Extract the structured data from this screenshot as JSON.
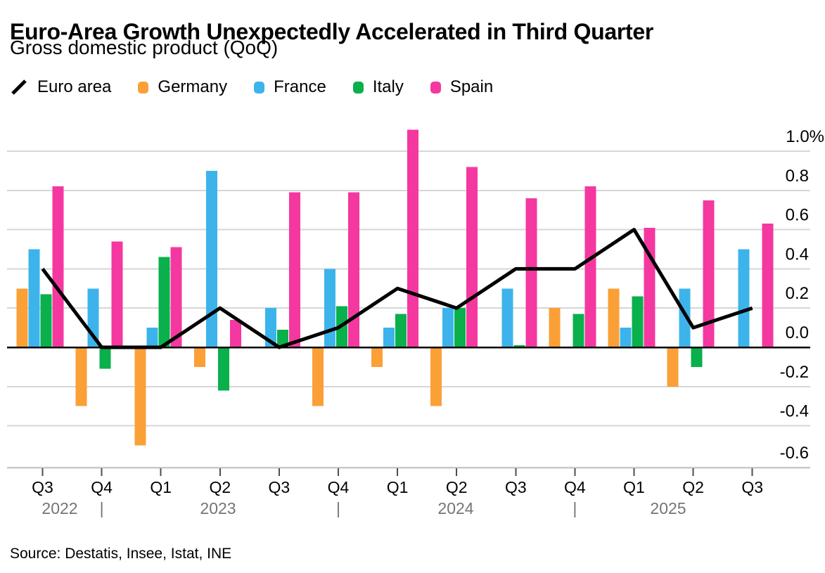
{
  "header": {
    "title": "Euro-Area Growth Unexpectedly Accelerated in Third Quarter",
    "subtitle": "Gross domestic product (QoQ)"
  },
  "legend": [
    {
      "label": "Euro area",
      "type": "line",
      "color": "#000000"
    },
    {
      "label": "Germany",
      "type": "square",
      "color": "#FAA037"
    },
    {
      "label": "France",
      "type": "square",
      "color": "#3CB4EB"
    },
    {
      "label": "Italy",
      "type": "square",
      "color": "#0AB04B"
    },
    {
      "label": "Spain",
      "type": "square",
      "color": "#F438A0"
    }
  ],
  "source": "Source: Destatis, Insee, Istat, INE",
  "chart_data": {
    "type": "bar+line",
    "categories": [
      "Q3",
      "Q4",
      "Q1",
      "Q2",
      "Q3",
      "Q4",
      "Q1",
      "Q2",
      "Q3",
      "Q4",
      "Q1",
      "Q2",
      "Q3"
    ],
    "year_labels": [
      "2022",
      "2023",
      "2024",
      "2025"
    ],
    "year_separator": "|",
    "ylim": [
      -0.6,
      1.0
    ],
    "ytick_values": [
      1.0,
      0.8,
      0.6,
      0.4,
      0.2,
      0.0,
      -0.2,
      -0.4,
      -0.6
    ],
    "ytick_labels": [
      "1.0%",
      "0.8",
      "0.6",
      "0.4",
      "0.2",
      "0.0",
      "-0.2",
      "-0.4",
      "-0.6"
    ],
    "grid": true,
    "legend_position": "top",
    "colors": {
      "euro_area": "#000000",
      "germany": "#FAA037",
      "france": "#3CB4EB",
      "italy": "#0AB04B",
      "spain": "#F438A0",
      "gridline": "#D6D6D6",
      "zero_line": "#000000",
      "axis_line": "#C9C9C9",
      "tick": "#4D4D4D",
      "year_text": "#757575",
      "label_text": "#000000"
    },
    "series": [
      {
        "name": "Euro area",
        "type": "line",
        "color": "#000000",
        "values": [
          0.4,
          0.0,
          0.0,
          0.2,
          0.0,
          0.1,
          0.3,
          0.2,
          0.4,
          0.4,
          0.6,
          0.1,
          0.2
        ]
      },
      {
        "name": "Germany",
        "type": "bar",
        "color": "#FAA037",
        "values": [
          0.3,
          -0.3,
          -0.5,
          -0.1,
          0.0,
          -0.3,
          -0.1,
          -0.3,
          0.0,
          0.2,
          0.3,
          -0.2,
          0.0
        ]
      },
      {
        "name": "France",
        "type": "bar",
        "color": "#3CB4EB",
        "values": [
          0.5,
          0.3,
          0.1,
          0.9,
          0.2,
          0.4,
          0.1,
          0.2,
          0.3,
          0.0,
          0.1,
          0.3,
          0.5
        ]
      },
      {
        "name": "Italy",
        "type": "bar",
        "color": "#0AB04B",
        "values": [
          0.27,
          -0.11,
          0.46,
          -0.22,
          0.09,
          0.21,
          0.17,
          0.2,
          0.01,
          0.17,
          0.26,
          -0.1,
          0.0
        ]
      },
      {
        "name": "Spain",
        "type": "bar",
        "color": "#F438A0",
        "values": [
          0.82,
          0.54,
          0.51,
          0.14,
          0.79,
          0.79,
          1.11,
          0.92,
          0.76,
          0.82,
          0.61,
          0.75,
          0.63
        ]
      }
    ]
  }
}
